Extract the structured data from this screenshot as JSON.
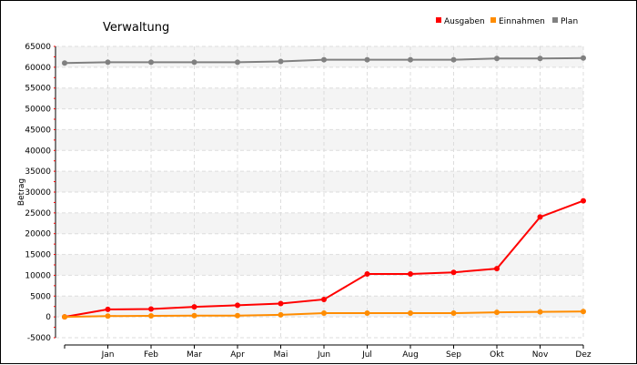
{
  "chart_data": {
    "type": "line",
    "title": "Verwaltung",
    "xlabel": "",
    "ylabel": "Betrag",
    "categories": [
      "",
      "Jan",
      "Feb",
      "Mar",
      "Apr",
      "Mai",
      "Jun",
      "Jul",
      "Aug",
      "Sep",
      "Okt",
      "Nov",
      "Dez"
    ],
    "yticks": [
      -5000,
      0,
      5000,
      10000,
      15000,
      20000,
      25000,
      30000,
      35000,
      40000,
      45000,
      50000,
      55000,
      60000,
      65000
    ],
    "ylim": [
      -5000,
      65000
    ],
    "grid": true,
    "legend_position": "top-right",
    "series": [
      {
        "name": "Ausgaben",
        "color": "#ff0000",
        "values": [
          0,
          1800,
          1900,
          2400,
          2800,
          3200,
          4200,
          10300,
          10300,
          10700,
          11600,
          24000,
          27900
        ]
      },
      {
        "name": "Einnahmen",
        "color": "#ff8c00",
        "values": [
          0,
          200,
          250,
          300,
          300,
          500,
          900,
          900,
          900,
          900,
          1100,
          1200,
          1300
        ]
      },
      {
        "name": "Plan",
        "color": "#808080",
        "values": [
          61000,
          61200,
          61200,
          61200,
          61200,
          61400,
          61800,
          61800,
          61800,
          61800,
          62100,
          62100,
          62200
        ]
      }
    ]
  }
}
